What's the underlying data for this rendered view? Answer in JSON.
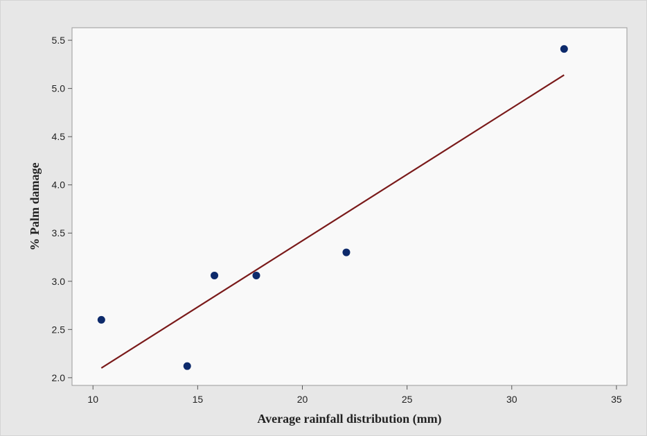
{
  "chart_data": {
    "type": "scatter",
    "xlabel": "Average rainfall distribution (mm)",
    "ylabel": "% Palm damage",
    "xlim": [
      9,
      35.5
    ],
    "ylim": [
      1.92,
      5.63
    ],
    "x_ticks": [
      10,
      15,
      20,
      25,
      30,
      35
    ],
    "y_ticks": [
      2.0,
      2.5,
      3.0,
      3.5,
      4.0,
      4.5,
      5.0,
      5.5
    ],
    "x_tick_labels": [
      "10",
      "15",
      "20",
      "25",
      "30",
      "35"
    ],
    "y_tick_labels": [
      "2.0",
      "2.5",
      "3.0",
      "3.5",
      "4.0",
      "4.5",
      "5.0",
      "5.5"
    ],
    "points": [
      {
        "x": 10.4,
        "y": 2.6
      },
      {
        "x": 14.5,
        "y": 2.12
      },
      {
        "x": 15.8,
        "y": 3.06
      },
      {
        "x": 17.8,
        "y": 3.06
      },
      {
        "x": 22.1,
        "y": 3.3
      },
      {
        "x": 32.5,
        "y": 5.41
      }
    ],
    "fit_line": {
      "x": [
        10.4,
        32.5
      ],
      "y": [
        2.1,
        5.14
      ]
    },
    "grid": false,
    "colors": {
      "points": "#0d2a6b",
      "fit_line": "#7a1a1a",
      "plot_bg": "#f9f9f9",
      "frame_bg": "#e7e7e7"
    }
  }
}
